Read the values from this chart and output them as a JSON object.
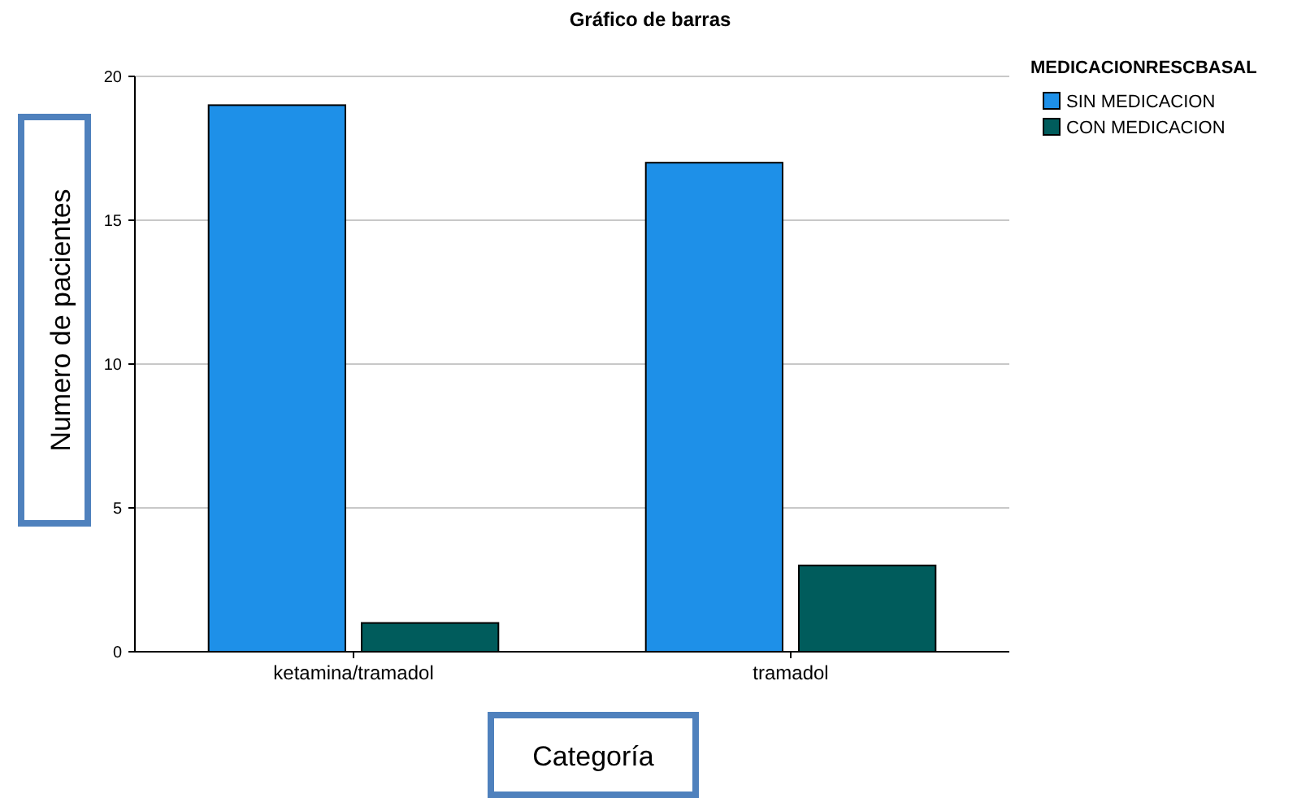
{
  "chart_data": {
    "type": "bar",
    "title": "Gráfico de barras",
    "xlabel": "Categoría",
    "ylabel": "Numero de pacientes",
    "legend_title": "MEDICACIONRESCBASAL",
    "categories": [
      "ketamina/tramadol",
      "tramadol"
    ],
    "series": [
      {
        "name": "SIN MEDICACION",
        "color": "#1e90e8",
        "values": [
          19,
          17
        ]
      },
      {
        "name": "CON MEDICACION",
        "color": "#005c5c",
        "values": [
          1,
          3
        ]
      }
    ],
    "ylim": [
      0,
      20
    ],
    "yticks": [
      0,
      5,
      10,
      15,
      20
    ],
    "grid": "y",
    "legend": "top right"
  }
}
